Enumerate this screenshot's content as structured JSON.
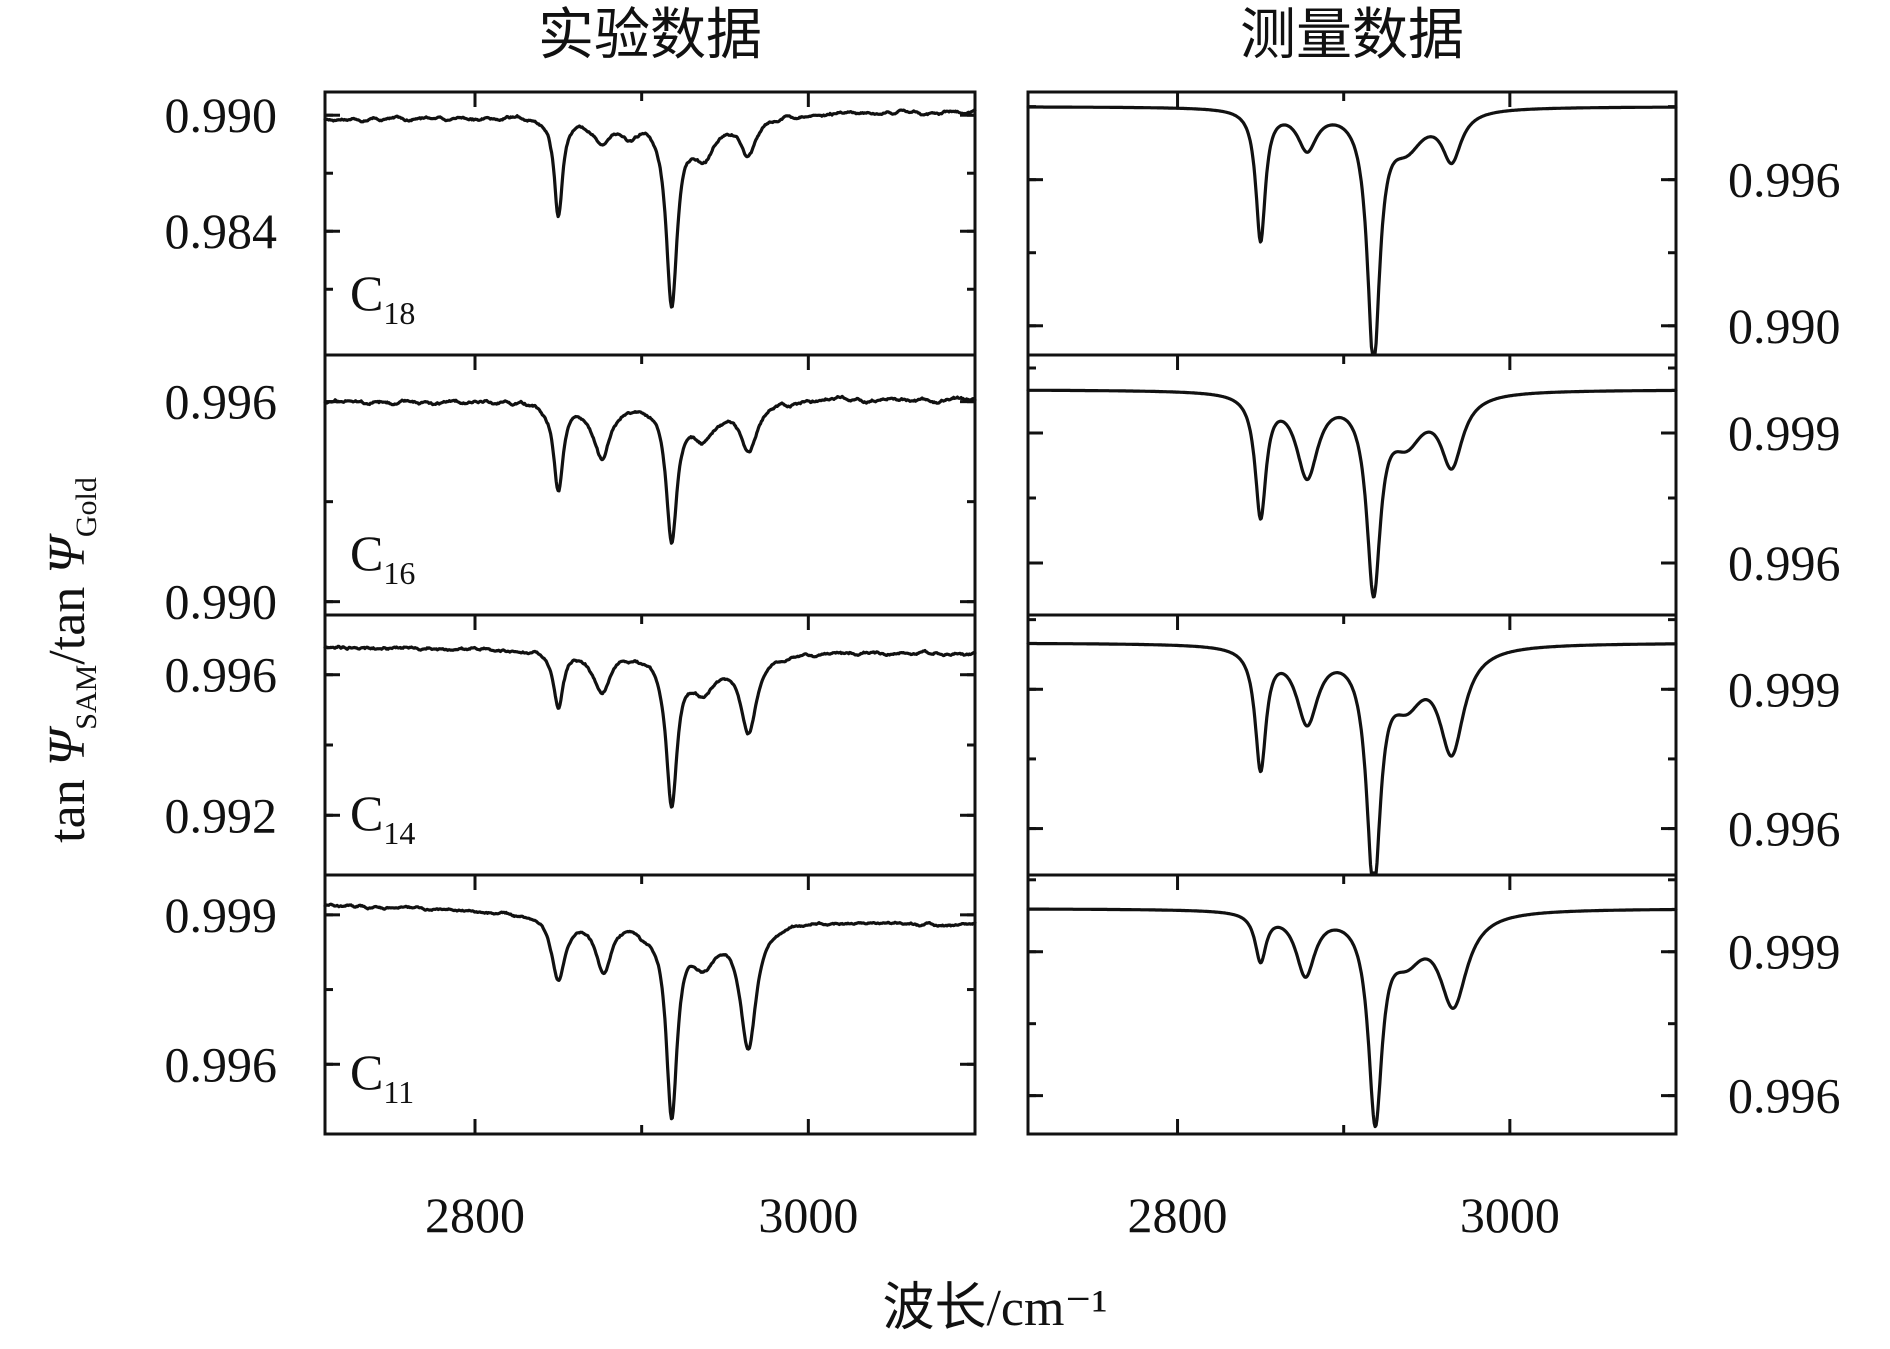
{
  "chart_data": {
    "type": "line",
    "columns": [
      "实验数据",
      "测量数据"
    ],
    "xlabel": "波长/cm⁻¹",
    "ylabel": {
      "prefix": "tan ",
      "psi": "Ψ",
      "sub1": "SAM",
      "slash": "/tan ",
      "sub2": "Gold"
    },
    "xlim": [
      2710,
      3100
    ],
    "xticks": [
      2800,
      3000
    ],
    "xtick_labels": [
      "2800",
      "3000"
    ],
    "panels": [
      {
        "compound": "C",
        "compound_sub": "18",
        "experimental": {
          "ylim": [
            0.9776,
            0.9912
          ],
          "yticks": [
            0.99,
            0.984
          ],
          "ytick_labels": [
            "0.990",
            "0.984"
          ],
          "baseline": 0.9898,
          "noise": 0.00018,
          "tilt": 0.0004,
          "peaks": [
            {
              "x": 2850,
              "depth": 0.005,
              "width": 3
            },
            {
              "x": 2876,
              "depth": 0.0012,
              "width": 7
            },
            {
              "x": 2893,
              "depth": 0.0008,
              "width": 6
            },
            {
              "x": 2918,
              "depth": 0.0095,
              "width": 4
            },
            {
              "x": 2937,
              "depth": 0.002,
              "width": 9
            },
            {
              "x": 2964,
              "depth": 0.0018,
              "width": 6
            }
          ]
        },
        "measured": {
          "ylim": [
            0.9888,
            0.9996
          ],
          "yticks": [
            0.996,
            0.99
          ],
          "ytick_labels": [
            "0.996",
            "0.990"
          ],
          "baseline": 0.999,
          "peaks": [
            {
              "x": 2850,
              "depth": 0.0054,
              "width": 3.5
            },
            {
              "x": 2878,
              "depth": 0.0016,
              "width": 7
            },
            {
              "x": 2918,
              "depth": 0.0102,
              "width": 4.5
            },
            {
              "x": 2938,
              "depth": 0.0014,
              "width": 12
            },
            {
              "x": 2965,
              "depth": 0.002,
              "width": 7
            }
          ]
        }
      },
      {
        "compound": "C",
        "compound_sub": "16",
        "experimental": {
          "ylim": [
            0.9896,
            0.9974
          ],
          "yticks": [
            0.996,
            0.99
          ],
          "ytick_labels": [
            "0.996",
            "0.990"
          ],
          "baseline": 0.996,
          "noise": 0.00012,
          "tilt": 0.0001,
          "peaks": [
            {
              "x": 2850,
              "depth": 0.0026,
              "width": 3.5
            },
            {
              "x": 2876,
              "depth": 0.0017,
              "width": 6
            },
            {
              "x": 2918,
              "depth": 0.004,
              "width": 4
            },
            {
              "x": 2937,
              "depth": 0.001,
              "width": 10
            },
            {
              "x": 2964,
              "depth": 0.0014,
              "width": 6
            }
          ]
        },
        "measured": {
          "ylim": [
            0.9948,
            1.0008
          ],
          "yticks": [
            0.999,
            0.996
          ],
          "ytick_labels": [
            "0.999",
            "0.996"
          ],
          "baseline": 1.0,
          "peaks": [
            {
              "x": 2850,
              "depth": 0.0028,
              "width": 4
            },
            {
              "x": 2878,
              "depth": 0.0019,
              "width": 8
            },
            {
              "x": 2918,
              "depth": 0.0044,
              "width": 5
            },
            {
              "x": 2938,
              "depth": 0.001,
              "width": 12
            },
            {
              "x": 2965,
              "depth": 0.0016,
              "width": 8
            }
          ]
        }
      },
      {
        "compound": "C",
        "compound_sub": "14",
        "experimental": {
          "ylim": [
            0.9903,
            0.9977
          ],
          "yticks": [
            0.996,
            0.992
          ],
          "ytick_labels": [
            "0.996",
            "0.992"
          ],
          "baseline": 0.9968,
          "noise": 0.0001,
          "tilt": -0.0002,
          "peaks": [
            {
              "x": 2850,
              "depth": 0.0016,
              "width": 3.5
            },
            {
              "x": 2876,
              "depth": 0.0011,
              "width": 6
            },
            {
              "x": 2918,
              "depth": 0.0042,
              "width": 4
            },
            {
              "x": 2937,
              "depth": 0.001,
              "width": 10
            },
            {
              "x": 2964,
              "depth": 0.0022,
              "width": 6
            }
          ]
        },
        "measured": {
          "ylim": [
            0.995,
            1.0006
          ],
          "yticks": [
            0.999,
            0.996
          ],
          "ytick_labels": [
            "0.999",
            "0.996"
          ],
          "baseline": 1.0,
          "peaks": [
            {
              "x": 2850,
              "depth": 0.0026,
              "width": 4
            },
            {
              "x": 2878,
              "depth": 0.0016,
              "width": 8
            },
            {
              "x": 2918,
              "depth": 0.005,
              "width": 5
            },
            {
              "x": 2938,
              "depth": 0.001,
              "width": 12
            },
            {
              "x": 2965,
              "depth": 0.0022,
              "width": 9
            }
          ]
        }
      },
      {
        "compound": "C",
        "compound_sub": "11",
        "experimental": {
          "ylim": [
            0.9946,
            0.9998
          ],
          "yticks": [
            0.999,
            0.996
          ],
          "ytick_labels": [
            "0.999",
            "0.996"
          ],
          "baseline": 0.9992,
          "noise": 6e-05,
          "tilt": -0.0004,
          "peaks": [
            {
              "x": 2850,
              "depth": 0.0013,
              "width": 5
            },
            {
              "x": 2877,
              "depth": 0.0011,
              "width": 6
            },
            {
              "x": 2903,
              "depth": 0.0002,
              "width": 6
            },
            {
              "x": 2918,
              "depth": 0.0038,
              "width": 4
            },
            {
              "x": 2937,
              "depth": 0.0008,
              "width": 10
            },
            {
              "x": 2964,
              "depth": 0.0025,
              "width": 6
            }
          ]
        },
        "measured": {
          "ylim": [
            0.9952,
            1.0006
          ],
          "yticks": [
            0.999,
            0.996
          ],
          "ytick_labels": [
            "0.999",
            "0.996"
          ],
          "baseline": 0.9999,
          "peaks": [
            {
              "x": 2850,
              "depth": 0.001,
              "width": 4
            },
            {
              "x": 2877,
              "depth": 0.0013,
              "width": 7
            },
            {
              "x": 2919,
              "depth": 0.0042,
              "width": 5
            },
            {
              "x": 2938,
              "depth": 0.0008,
              "width": 12
            },
            {
              "x": 2966,
              "depth": 0.0019,
              "width": 10
            }
          ]
        }
      }
    ]
  }
}
